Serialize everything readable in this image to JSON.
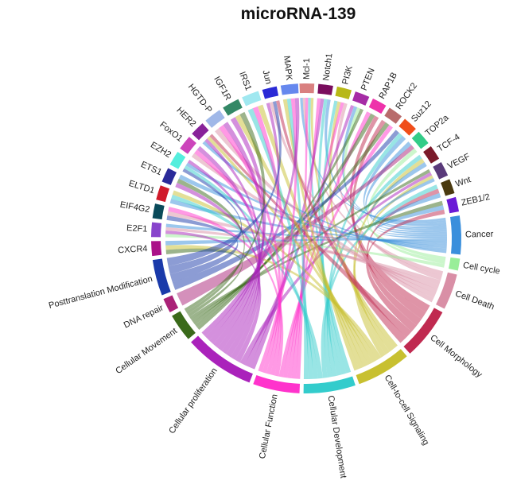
{
  "title": "microRNA-139",
  "sectors": [
    {
      "name": "Mcl-1",
      "start": -2.5,
      "end": 3,
      "color": "#d98080"
    },
    {
      "name": "Notch1",
      "start": 4.5,
      "end": 10,
      "color": "#7a0d5e"
    },
    {
      "name": "PI3K",
      "start": 11.5,
      "end": 17,
      "color": "#b8b817"
    },
    {
      "name": "PTEN",
      "start": 18.5,
      "end": 24,
      "color": "#a62ca6"
    },
    {
      "name": "RAP1B",
      "start": 25.5,
      "end": 31,
      "color": "#ee33aa"
    },
    {
      "name": "ROCK2",
      "start": 32.5,
      "end": 38,
      "color": "#b86b6b"
    },
    {
      "name": "Suz12",
      "start": 39.5,
      "end": 45,
      "color": "#f04e1a"
    },
    {
      "name": "TOP2a",
      "start": 46.5,
      "end": 52,
      "color": "#33cc88"
    },
    {
      "name": "TCF-4",
      "start": 53.5,
      "end": 59,
      "color": "#7a1a2a"
    },
    {
      "name": "VEGF",
      "start": 60.5,
      "end": 66,
      "color": "#5a3a7a"
    },
    {
      "name": "Wnt",
      "start": 67.5,
      "end": 73,
      "color": "#4a3a10"
    },
    {
      "name": "ZEB1/2",
      "start": 74.5,
      "end": 80,
      "color": "#6a1ad6"
    },
    {
      "name": "Cancer",
      "start": 81.5,
      "end": 96,
      "color": "#3a8fdc"
    },
    {
      "name": "Cell cycle",
      "start": 97.5,
      "end": 102,
      "color": "#99ee99"
    },
    {
      "name": "Cell Death",
      "start": 103.5,
      "end": 117,
      "color": "#d98fa6"
    },
    {
      "name": "Cell Morphology",
      "start": 118.5,
      "end": 138,
      "color": "#c02a50"
    },
    {
      "name": "Cell-to-cell Signaling",
      "start": 139.5,
      "end": 160,
      "color": "#c8c030"
    },
    {
      "name": "Cellular Development",
      "start": 161.5,
      "end": 181,
      "color": "#33cccc"
    },
    {
      "name": "Cellular Function",
      "start": 182.5,
      "end": 200,
      "color": "#ff33cc"
    },
    {
      "name": "Cellular proliferation",
      "start": 201.5,
      "end": 228,
      "color": "#aa22bb"
    },
    {
      "name": "Cellular Movement",
      "start": 229.5,
      "end": 240,
      "color": "#3a6a1a"
    },
    {
      "name": "DNA repair",
      "start": 241.5,
      "end": 247,
      "color": "#aa2277"
    },
    {
      "name": "Posttranslation Modification",
      "start": 248.5,
      "end": 262,
      "color": "#1a3aaa"
    },
    {
      "name": "CXCR4",
      "start": 263.5,
      "end": 269,
      "color": "#aa1188"
    },
    {
      "name": "E2F1",
      "start": 270.5,
      "end": 276,
      "color": "#8844cc"
    },
    {
      "name": "EIF4G2",
      "start": 277.5,
      "end": 283,
      "color": "#0a4a5a"
    },
    {
      "name": "ELTD1",
      "start": 284.5,
      "end": 290,
      "color": "#d01a2a"
    },
    {
      "name": "ETS1",
      "start": 291.5,
      "end": 297,
      "color": "#2a2a99"
    },
    {
      "name": "EZH2",
      "start": 298.5,
      "end": 304,
      "color": "#55eedd"
    },
    {
      "name": "FoxO1",
      "start": 305.5,
      "end": 311,
      "color": "#cc44bb"
    },
    {
      "name": "HER2",
      "start": 312.5,
      "end": 318,
      "color": "#882299"
    },
    {
      "name": "HGTD-P",
      "start": 319.5,
      "end": 326,
      "color": "#a0b8e8"
    },
    {
      "name": "IGF1R",
      "start": 327.5,
      "end": 334,
      "color": "#338866"
    },
    {
      "name": "IRS1",
      "start": 335.5,
      "end": 342,
      "color": "#a0e8f0"
    },
    {
      "name": "Jun",
      "start": 343.5,
      "end": 349,
      "color": "#2a2ad6"
    },
    {
      "name": "MAPK",
      "start": 350.5,
      "end": 357,
      "color": "#6688ee"
    }
  ],
  "links": {
    "Mcl-1": [
      "Cancer",
      "Cell Death",
      "Cellular Function",
      "Cellular Development",
      "Cell-to-cell Signaling"
    ],
    "Notch1": [
      "Cellular Function",
      "Cellular proliferation",
      "Cellular Development",
      "Cancer"
    ],
    "PI3K": [
      "Cellular Development",
      "Cell-to-cell Signaling",
      "Cellular Function",
      "Cell Death"
    ],
    "PTEN": [
      "Cellular proliferation",
      "Cancer",
      "Cell cycle",
      "Cellular Movement"
    ],
    "RAP1B": [
      "Cellular Function",
      "Cellular Movement",
      "Cell Morphology"
    ],
    "ROCK2": [
      "Cell Morphology",
      "Cellular Movement",
      "Cellular Function"
    ],
    "Suz12": [
      "Posttranslation Modification",
      "Cellular Development",
      "Cancer"
    ],
    "TOP2a": [
      "Cancer",
      "DNA repair",
      "Cell cycle"
    ],
    "TCF-4": [
      "Cellular Development",
      "Cell-to-cell Signaling",
      "Cancer"
    ],
    "VEGF": [
      "Cellular Movement",
      "Cellular proliferation",
      "Cell-to-cell Signaling",
      "Cancer"
    ],
    "Wnt": [
      "Cellular Development",
      "Cell Morphology",
      "Cancer"
    ],
    "ZEB1/2": [
      "Cellular Movement",
      "Cancer",
      "Cell Morphology"
    ],
    "CXCR4": [
      "Cellular Movement",
      "Cell-to-cell Signaling",
      "Cancer"
    ],
    "E2F1": [
      "Cell cycle",
      "Cellular proliferation",
      "Cell Death",
      "Cancer"
    ],
    "EIF4G2": [
      "Posttranslation Modification",
      "Cell Death",
      "Cellular Function"
    ],
    "ELTD1": [
      "Cancer",
      "Cellular Development",
      "Cell-to-cell Signaling"
    ],
    "ETS1": [
      "Cellular proliferation",
      "Cellular Movement",
      "Cancer"
    ],
    "EZH2": [
      "Posttranslation Modification",
      "Cellular Development",
      "Cancer",
      "Cellular proliferation"
    ],
    "FoxO1": [
      "Cell Death",
      "Cellular Function",
      "Cellular proliferation"
    ],
    "HER2": [
      "Cancer",
      "Cellular proliferation",
      "Cell-to-cell Signaling",
      "Cell Morphology"
    ],
    "HGTD-P": [
      "Cell Death",
      "Cellular Function",
      "Cellular proliferation"
    ],
    "IGF1R": [
      "Cellular proliferation",
      "Cell-to-cell Signaling",
      "Cellular Movement"
    ],
    "IRS1": [
      "Cellular Development",
      "Cellular Function",
      "Cell-to-cell Signaling"
    ],
    "Jun": [
      "Cellular proliferation",
      "Cell Death",
      "Posttranslation Modification",
      "Cell Morphology"
    ],
    "MAPK": [
      "Cell-to-cell Signaling",
      "Cellular Development",
      "Cellular Function",
      "Cellular proliferation"
    ]
  }
}
